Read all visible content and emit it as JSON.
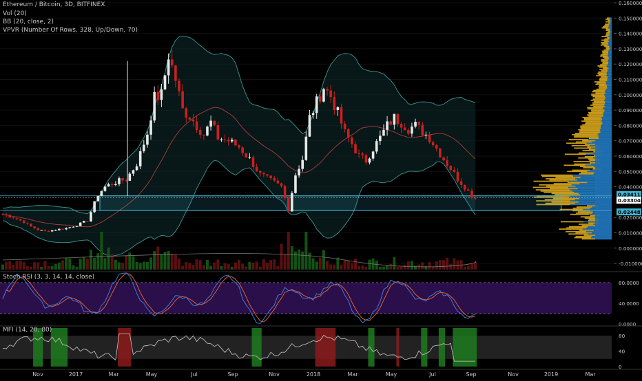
{
  "header": {
    "title": "Ethereum / Bitcoin, 3D, BITFINEX",
    "indicators": [
      "Vol (20)",
      "BB (20, close, 2)",
      "VPVR (Number Of Rows, 328, Up/Down, 70)"
    ]
  },
  "colors": {
    "background": "#000000",
    "up": "#2e8b2e",
    "down": "#cc1f1f",
    "bb_band": "#3a8a8a",
    "bb_mid": "#a33a3a",
    "box": "#3fb5d6",
    "vpvr_blue": "#1e6fb0",
    "vpvr_gold": "#c89a1a",
    "stoch_k": "#3d7bd9",
    "stoch_d": "#e06030",
    "stoch_bg": "#2a0f4a",
    "mfi_line": "#bbbbbb",
    "mfi_green": "#1f7a1f",
    "mfi_red": "#8b1a1a"
  },
  "main_axis": {
    "ticks": [
      "0.160000",
      "0.150000",
      "0.140000",
      "0.130000",
      "0.120000",
      "0.110000",
      "0.100000",
      "0.090000",
      "0.080000",
      "0.070000",
      "0.060000",
      "0.050000",
      "0.040000",
      "0.020000",
      "0.010000",
      "0.000000",
      "-0.010000"
    ],
    "markers": [
      "0.034112",
      "0.033040",
      "0.024481"
    ]
  },
  "stoch": {
    "label": "Stoch RSI (3, 3, 14, 14, close)",
    "ticks": [
      "80.0000",
      "40.0000",
      "0.0000"
    ]
  },
  "mfi": {
    "label": "MFI (14, 20, 80)",
    "ticks": [
      "80",
      "40",
      "0"
    ]
  },
  "x_axis": {
    "labels": [
      "Nov",
      "2017",
      "Mar",
      "May",
      "Jul",
      "Sep",
      "Nov",
      "2018",
      "Mar",
      "May",
      "Jul",
      "Sep",
      "Nov",
      "2019",
      "Mar"
    ]
  },
  "chart_data": {
    "type": "candlestick",
    "x_labels": [
      "Nov",
      "2017",
      "Mar",
      "May",
      "Jul",
      "Sep",
      "Nov",
      "2018",
      "Mar",
      "May",
      "Jul",
      "Sep",
      "Nov",
      "2019",
      "Mar"
    ],
    "anchors": [
      [
        0,
        0.022
      ],
      [
        3,
        0.02
      ],
      [
        6,
        0.017
      ],
      [
        8,
        0.014
      ],
      [
        10,
        0.012
      ],
      [
        12,
        0.011
      ],
      [
        15,
        0.012
      ],
      [
        18,
        0.013
      ],
      [
        21,
        0.015
      ],
      [
        24,
        0.018
      ],
      [
        27,
        0.035
      ],
      [
        29,
        0.04
      ],
      [
        32,
        0.043
      ],
      [
        35,
        0.045
      ],
      [
        38,
        0.055
      ],
      [
        41,
        0.075
      ],
      [
        43,
        0.098
      ],
      [
        45,
        0.1
      ],
      [
        47,
        0.126
      ],
      [
        49,
        0.11
      ],
      [
        51,
        0.09
      ],
      [
        53,
        0.086
      ],
      [
        55,
        0.08
      ],
      [
        57,
        0.074
      ],
      [
        59,
        0.082
      ],
      [
        61,
        0.072
      ],
      [
        64,
        0.07
      ],
      [
        67,
        0.066
      ],
      [
        70,
        0.058
      ],
      [
        73,
        0.048
      ],
      [
        76,
        0.044
      ],
      [
        79,
        0.04
      ],
      [
        81,
        0.025
      ],
      [
        83,
        0.048
      ],
      [
        85,
        0.058
      ],
      [
        87,
        0.085
      ],
      [
        89,
        0.095
      ],
      [
        91,
        0.105
      ],
      [
        93,
        0.099
      ],
      [
        95,
        0.088
      ],
      [
        97,
        0.075
      ],
      [
        99,
        0.068
      ],
      [
        101,
        0.06
      ],
      [
        103,
        0.057
      ],
      [
        105,
        0.065
      ],
      [
        107,
        0.072
      ],
      [
        109,
        0.08
      ],
      [
        111,
        0.085
      ],
      [
        113,
        0.082
      ],
      [
        115,
        0.078
      ],
      [
        117,
        0.08
      ],
      [
        119,
        0.076
      ],
      [
        121,
        0.072
      ],
      [
        123,
        0.065
      ],
      [
        125,
        0.058
      ],
      [
        127,
        0.052
      ],
      [
        129,
        0.045
      ],
      [
        131,
        0.04
      ],
      [
        133,
        0.034
      ],
      [
        134,
        0.033
      ]
    ],
    "ylim": [
      -0.014,
      0.16
    ],
    "stoch_ylim": [
      0,
      100
    ],
    "mfi_ylim": [
      0,
      100
    ],
    "range_box": {
      "top": 0.0341,
      "bottom": 0.0245
    },
    "mfi_shaded": [
      {
        "from": 9,
        "to": 11,
        "color": "green"
      },
      {
        "from": 14,
        "to": 18,
        "color": "green"
      },
      {
        "from": 33,
        "to": 36,
        "color": "red"
      },
      {
        "from": 71,
        "to": 73,
        "color": "green"
      },
      {
        "from": 89,
        "to": 94,
        "color": "red"
      },
      {
        "from": 104,
        "to": 105,
        "color": "green"
      },
      {
        "from": 112,
        "to": 112,
        "color": "red"
      },
      {
        "from": 119,
        "to": 120,
        "color": "green"
      },
      {
        "from": 124,
        "to": 125,
        "color": "green"
      },
      {
        "from": 128,
        "to": 134,
        "color": "green"
      }
    ]
  }
}
